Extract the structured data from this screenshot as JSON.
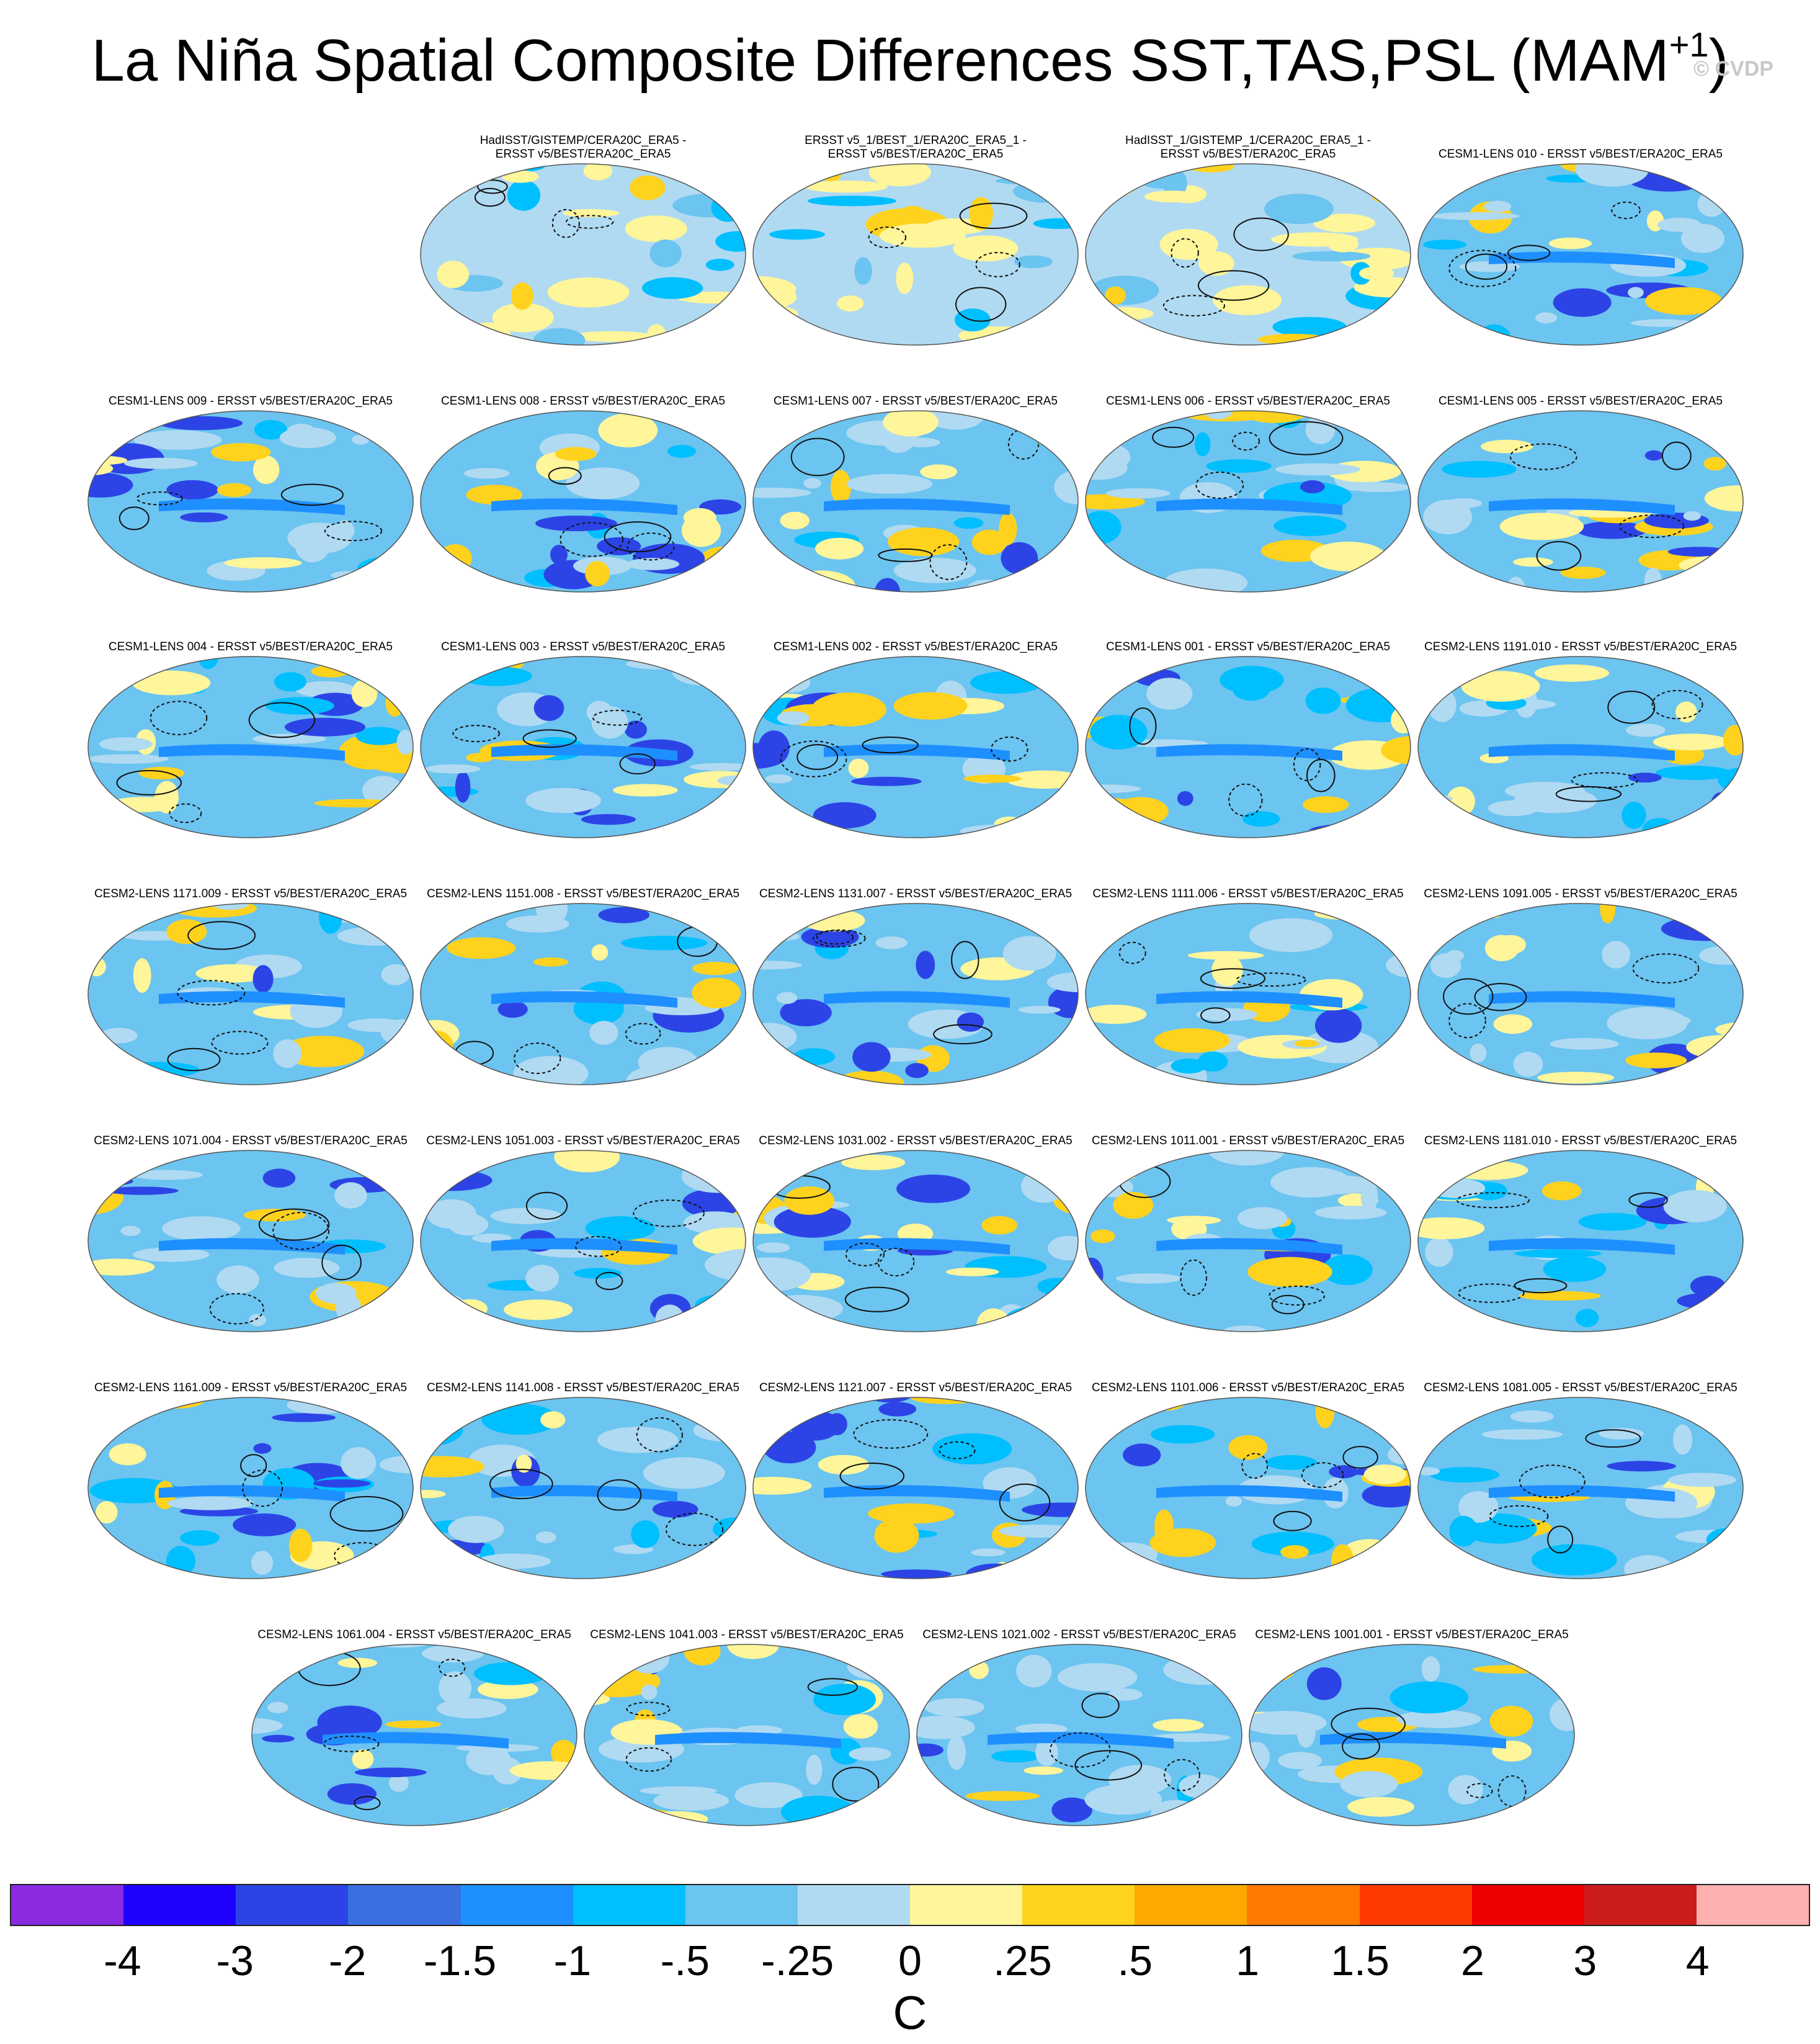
{
  "title": {
    "main": "La Niña Spatial Composite Differences SST,TAS,PSL (MAM",
    "superscript": "+1",
    "close": ")"
  },
  "watermark": "© CVDP",
  "panels": [
    {
      "caption": [
        "HadISST/GISTEMP/CERA20C_ERA5 -",
        "ERSST v5/BEST/ERA20C_ERA5"
      ]
    },
    {
      "caption": [
        "ERSST v5_1/BEST_1/ERA20C_ERA5_1 -",
        "ERSST v5/BEST/ERA20C_ERA5"
      ]
    },
    {
      "caption": [
        "HadISST_1/GISTEMP_1/CERA20C_ERA5_1 -",
        "ERSST v5/BEST/ERA20C_ERA5"
      ]
    },
    {
      "caption": [
        "CESM1-LENS 010 - ERSST v5/BEST/ERA20C_ERA5"
      ]
    },
    {
      "caption": [
        "CESM1-LENS 009 - ERSST v5/BEST/ERA20C_ERA5"
      ]
    },
    {
      "caption": [
        "CESM1-LENS 008 - ERSST v5/BEST/ERA20C_ERA5"
      ]
    },
    {
      "caption": [
        "CESM1-LENS 007 - ERSST v5/BEST/ERA20C_ERA5"
      ]
    },
    {
      "caption": [
        "CESM1-LENS 006 - ERSST v5/BEST/ERA20C_ERA5"
      ]
    },
    {
      "caption": [
        "CESM1-LENS 005 - ERSST v5/BEST/ERA20C_ERA5"
      ]
    },
    {
      "caption": [
        "CESM1-LENS 004 - ERSST v5/BEST/ERA20C_ERA5"
      ]
    },
    {
      "caption": [
        "CESM1-LENS 003 - ERSST v5/BEST/ERA20C_ERA5"
      ]
    },
    {
      "caption": [
        "CESM1-LENS 002 - ERSST v5/BEST/ERA20C_ERA5"
      ]
    },
    {
      "caption": [
        "CESM1-LENS 001 - ERSST v5/BEST/ERA20C_ERA5"
      ]
    },
    {
      "caption": [
        "CESM2-LENS 1191.010 - ERSST v5/BEST/ERA20C_ERA5"
      ]
    },
    {
      "caption": [
        "CESM2-LENS 1171.009 - ERSST v5/BEST/ERA20C_ERA5"
      ]
    },
    {
      "caption": [
        "CESM2-LENS 1151.008 - ERSST v5/BEST/ERA20C_ERA5"
      ]
    },
    {
      "caption": [
        "CESM2-LENS 1131.007 - ERSST v5/BEST/ERA20C_ERA5"
      ]
    },
    {
      "caption": [
        "CESM2-LENS 1111.006 - ERSST v5/BEST/ERA20C_ERA5"
      ]
    },
    {
      "caption": [
        "CESM2-LENS 1091.005 - ERSST v5/BEST/ERA20C_ERA5"
      ]
    },
    {
      "caption": [
        "CESM2-LENS 1071.004 - ERSST v5/BEST/ERA20C_ERA5"
      ]
    },
    {
      "caption": [
        "CESM2-LENS 1051.003 - ERSST v5/BEST/ERA20C_ERA5"
      ]
    },
    {
      "caption": [
        "CESM2-LENS 1031.002 - ERSST v5/BEST/ERA20C_ERA5"
      ]
    },
    {
      "caption": [
        "CESM2-LENS 1011.001 - ERSST v5/BEST/ERA20C_ERA5"
      ]
    },
    {
      "caption": [
        "CESM2-LENS 1181.010 - ERSST v5/BEST/ERA20C_ERA5"
      ]
    },
    {
      "caption": [
        "CESM2-LENS 1161.009 - ERSST v5/BEST/ERA20C_ERA5"
      ]
    },
    {
      "caption": [
        "CESM2-LENS 1141.008 - ERSST v5/BEST/ERA20C_ERA5"
      ]
    },
    {
      "caption": [
        "CESM2-LENS 1121.007 - ERSST v5/BEST/ERA20C_ERA5"
      ]
    },
    {
      "caption": [
        "CESM2-LENS 1101.006 - ERSST v5/BEST/ERA20C_ERA5"
      ]
    },
    {
      "caption": [
        "CESM2-LENS 1081.005 - ERSST v5/BEST/ERA20C_ERA5"
      ]
    },
    {
      "caption": [
        "CESM2-LENS 1061.004 - ERSST v5/BEST/ERA20C_ERA5"
      ]
    },
    {
      "caption": [
        "CESM2-LENS 1041.003 - ERSST v5/BEST/ERA20C_ERA5"
      ]
    },
    {
      "caption": [
        "CESM2-LENS 1021.002 - ERSST v5/BEST/ERA20C_ERA5"
      ]
    },
    {
      "caption": [
        "CESM2-LENS 1001.001 - ERSST v5/BEST/ERA20C_ERA5"
      ]
    }
  ],
  "colorbar": {
    "colors": [
      "#8a2be2",
      "#1e00ff",
      "#2c44e6",
      "#3a6fe0",
      "#1e8fff",
      "#00bfff",
      "#6cc4f0",
      "#b0daf2",
      "#fff59a",
      "#ffd21e",
      "#ffa800",
      "#ff7a00",
      "#ff3a00",
      "#ee0000",
      "#cc1c1c",
      "#ffb0b0"
    ],
    "ticks": [
      "-4",
      "-3",
      "-2",
      "-1.5",
      "-1",
      "-.5",
      "-.25",
      "0",
      ".25",
      ".5",
      "1",
      "1.5",
      "2",
      "3",
      "4"
    ],
    "units": "C"
  }
}
